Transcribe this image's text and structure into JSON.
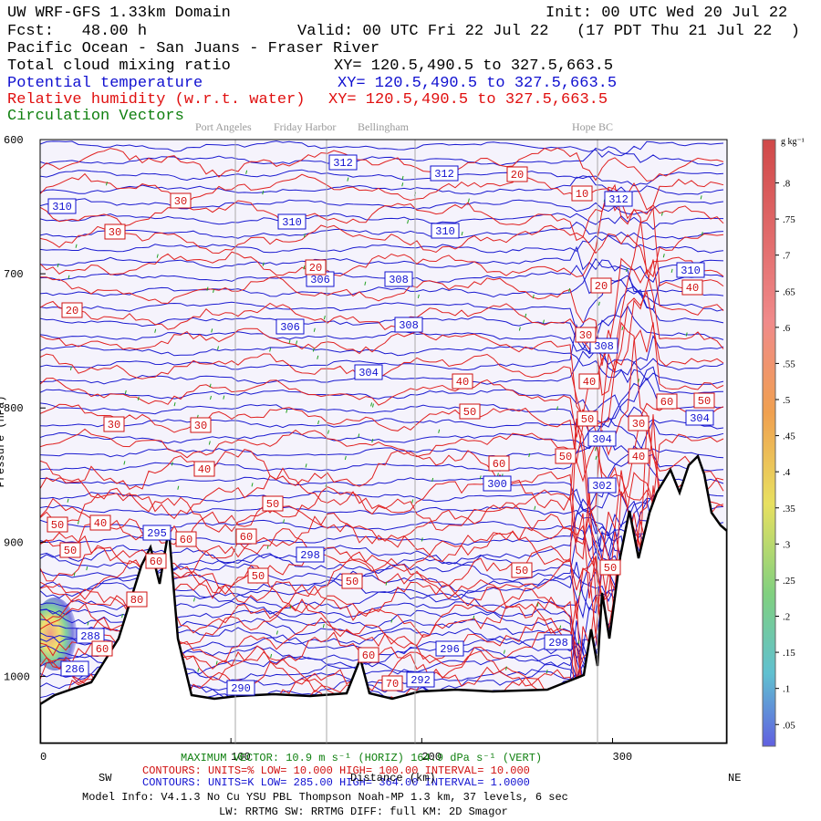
{
  "header": {
    "title": "UW WRF-GFS 1.33km Domain",
    "init": "Init: 00 UTC Wed 20 Jul 22",
    "fcst": "Fcst:   48.00 h",
    "valid": "Valid: 00 UTC Fri 22 Jul 22   (17 PDT Thu 21 Jul 22  )",
    "region": "Pacific Ocean - San Juans - Fraser River",
    "fields": [
      {
        "name": "Total cloud mixing ratio",
        "xy": "XY= 120.5,490.5 to 327.5,663.5"
      },
      {
        "name": "Potential temperature",
        "xy": "XY= 120.5,490.5 to 327.5,663.5"
      },
      {
        "name": "Relative humidity (w.r.t. water)",
        "xy": "XY= 120.5,490.5 to 327.5,663.5"
      },
      {
        "name": "Circulation Vectors"
      }
    ]
  },
  "chart_data": {
    "type": "cross-section",
    "locations": [
      "Port Angeles",
      "Friday Harbor",
      "Bellingham",
      "Hope BC"
    ],
    "ylabel": "Pressure (hPa)",
    "ylim": [
      600,
      1050
    ],
    "yticks": [
      600,
      700,
      800,
      900,
      1000
    ],
    "xlabel": "Distance (km)",
    "xlim": [
      0,
      360
    ],
    "xticks": [
      0,
      100,
      200,
      300
    ],
    "x_start": "SW",
    "x_end": "NE",
    "theta_labels": [
      312,
      312,
      312,
      310,
      310,
      310,
      310,
      306,
      308,
      306,
      308,
      308,
      304,
      304,
      304,
      300,
      302,
      298,
      298,
      296,
      295,
      288,
      286,
      290,
      292
    ],
    "rh_labels": [
      30,
      30,
      20,
      10,
      20,
      20,
      20,
      40,
      30,
      40,
      40,
      50,
      60,
      50,
      30,
      30,
      50,
      30,
      60,
      50,
      40,
      40,
      50,
      50,
      40,
      60,
      60,
      50,
      60,
      50,
      50,
      50,
      50,
      80,
      60,
      60,
      70
    ],
    "colorbar": {
      "unit": "g kg⁻¹",
      "clim": [
        0.02,
        0.86
      ],
      "ticks": [
        {
          "value": 0.8,
          "label": ".8"
        },
        {
          "value": 0.75,
          "label": ".75"
        },
        {
          "value": 0.7,
          "label": ".7"
        },
        {
          "value": 0.65,
          "label": ".65"
        },
        {
          "value": 0.6,
          "label": ".6"
        },
        {
          "value": 0.55,
          "label": ".55"
        },
        {
          "value": 0.5,
          "label": ".5"
        },
        {
          "value": 0.45,
          "label": ".45"
        },
        {
          "value": 0.4,
          "label": ".4"
        },
        {
          "value": 0.35,
          "label": ".35"
        },
        {
          "value": 0.3,
          "label": ".3"
        },
        {
          "value": 0.25,
          "label": ".25"
        },
        {
          "value": 0.2,
          "label": ".2"
        },
        {
          "value": 0.15,
          "label": ".15"
        },
        {
          "value": 0.1,
          "label": ".1"
        },
        {
          "value": 0.05,
          "label": ".05"
        }
      ]
    }
  },
  "footer": {
    "vector": "MAXIMUM VECTOR:  10.9 m s⁻¹ (HORIZ)       164.9 dPa s⁻¹ (VERT)",
    "rh_contours": "CONTOURS:  UNITS=%  LOW=   10.000     HIGH=   100.00     INTERVAL=   10.000",
    "theta_contours": "CONTOURS:  UNITS=K  LOW=  285.00     HIGH=  364.00     INTERVAL=   1.0000",
    "model": "Model Info: V4.1.3    No Cu    YSU PBL  Thompson    Noah-MP    1.3 km,   37 levels,    6 sec",
    "physics": "LW: RRTMG  SW: RRTMG    DIFF: full    KM: 2D Smagor"
  }
}
